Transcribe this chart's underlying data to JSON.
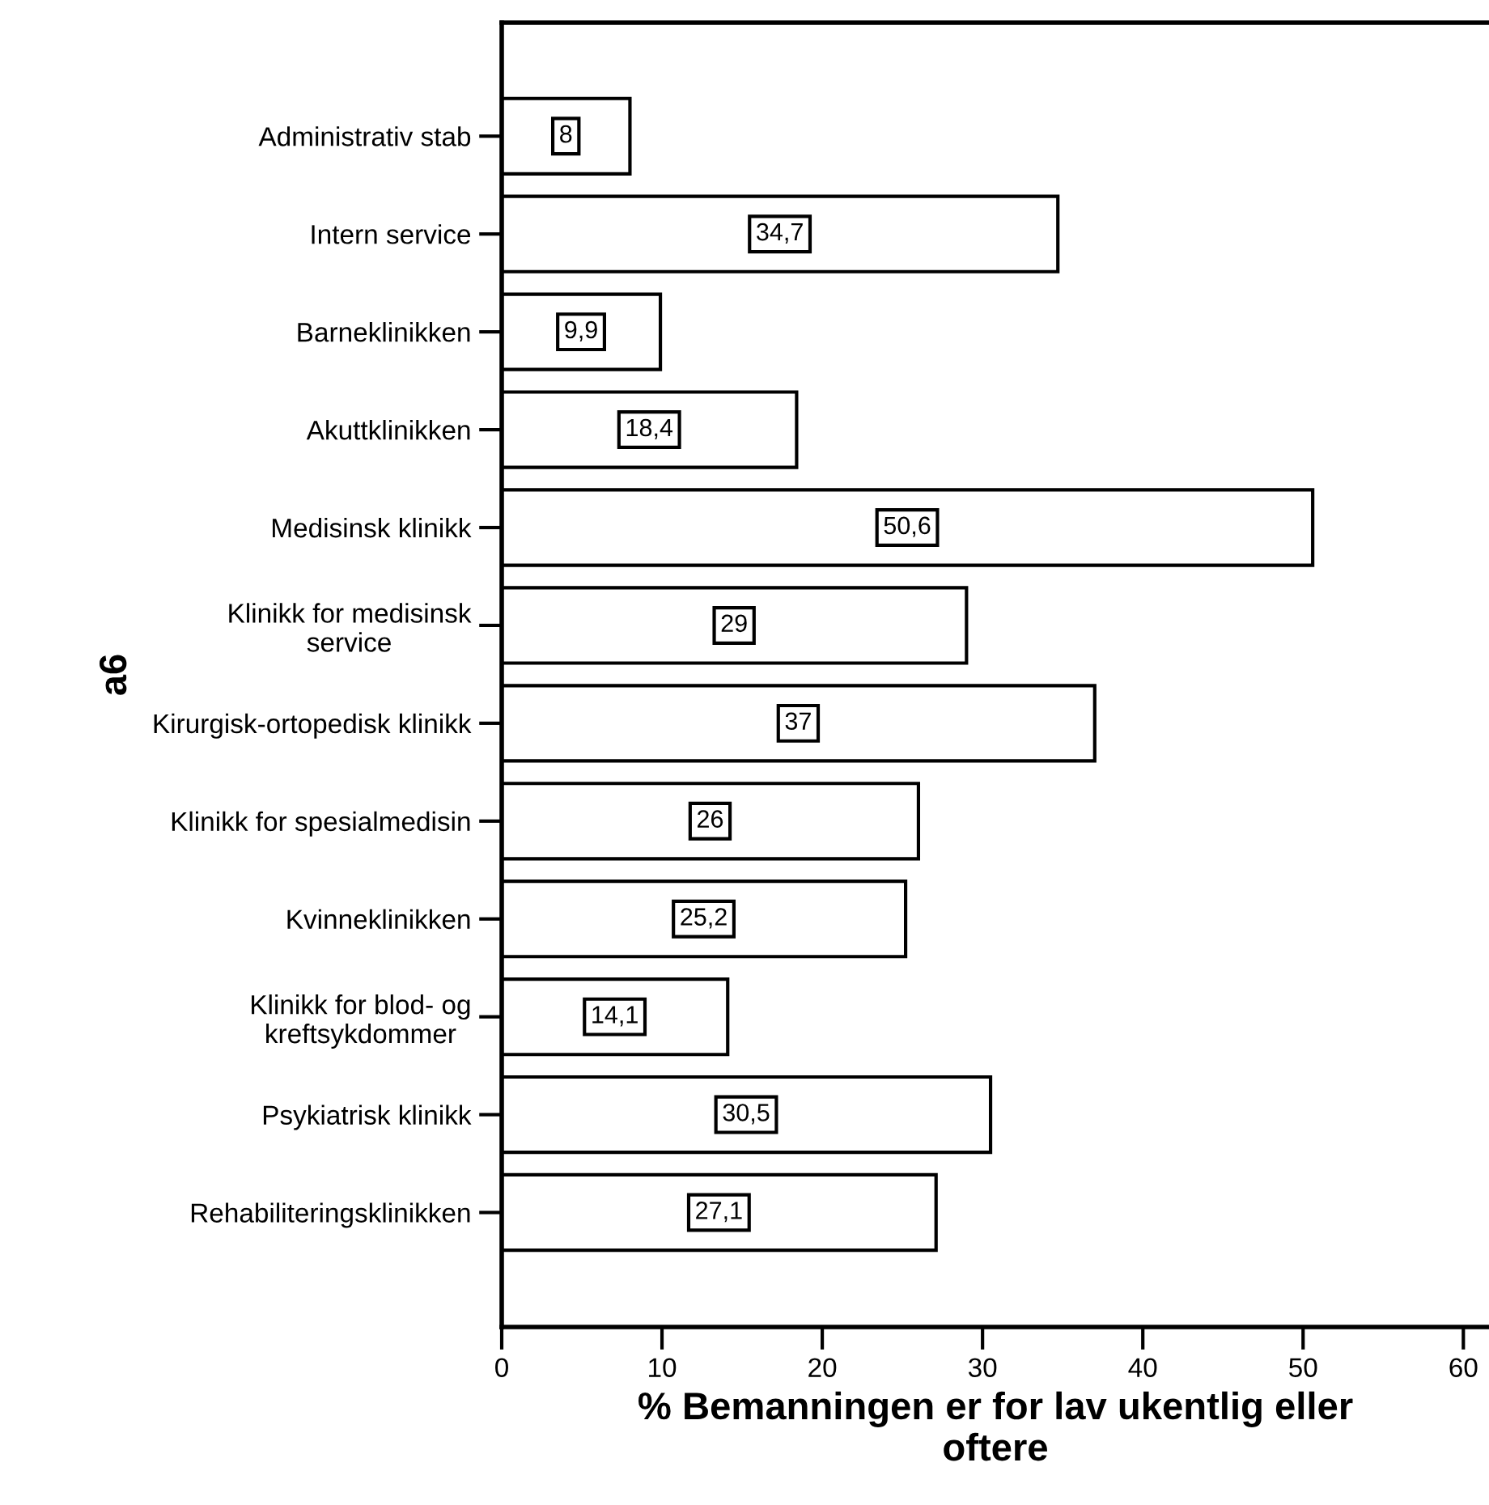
{
  "chart_data": {
    "type": "bar",
    "orientation": "horizontal",
    "categories": [
      "Administrativ stab",
      "Intern service",
      "Barneklinikken",
      "Akuttklinikken",
      "Medisinsk klinikk",
      "Klinikk for medisinsk\nservice",
      "Kirurgisk-ortopedisk klinikk",
      "Klinikk for spesialmedisin",
      "Kvinneklinikken",
      "Klinikk for blod- og\nkreftsykdommer",
      "Psykiatrisk klinikk",
      "Rehabiliteringsklinikken"
    ],
    "values": [
      8,
      34.7,
      9.9,
      18.4,
      50.6,
      29,
      37,
      26,
      25.2,
      14.1,
      30.5,
      27.1
    ],
    "value_labels": [
      "8",
      "34,7",
      "9,9",
      "18,4",
      "50,6",
      "29",
      "37",
      "26",
      "25,2",
      "14,1",
      "30,5",
      "27,1"
    ],
    "color": "#ffffff",
    "xlim": [
      0,
      61.6
    ],
    "xticks": [
      0,
      10,
      20,
      30,
      40,
      50,
      60
    ],
    "xlabel": "% Bemanningen er for lav ukentlig eller\noftere",
    "ylabel": "a6",
    "grid": false,
    "legend": false
  }
}
